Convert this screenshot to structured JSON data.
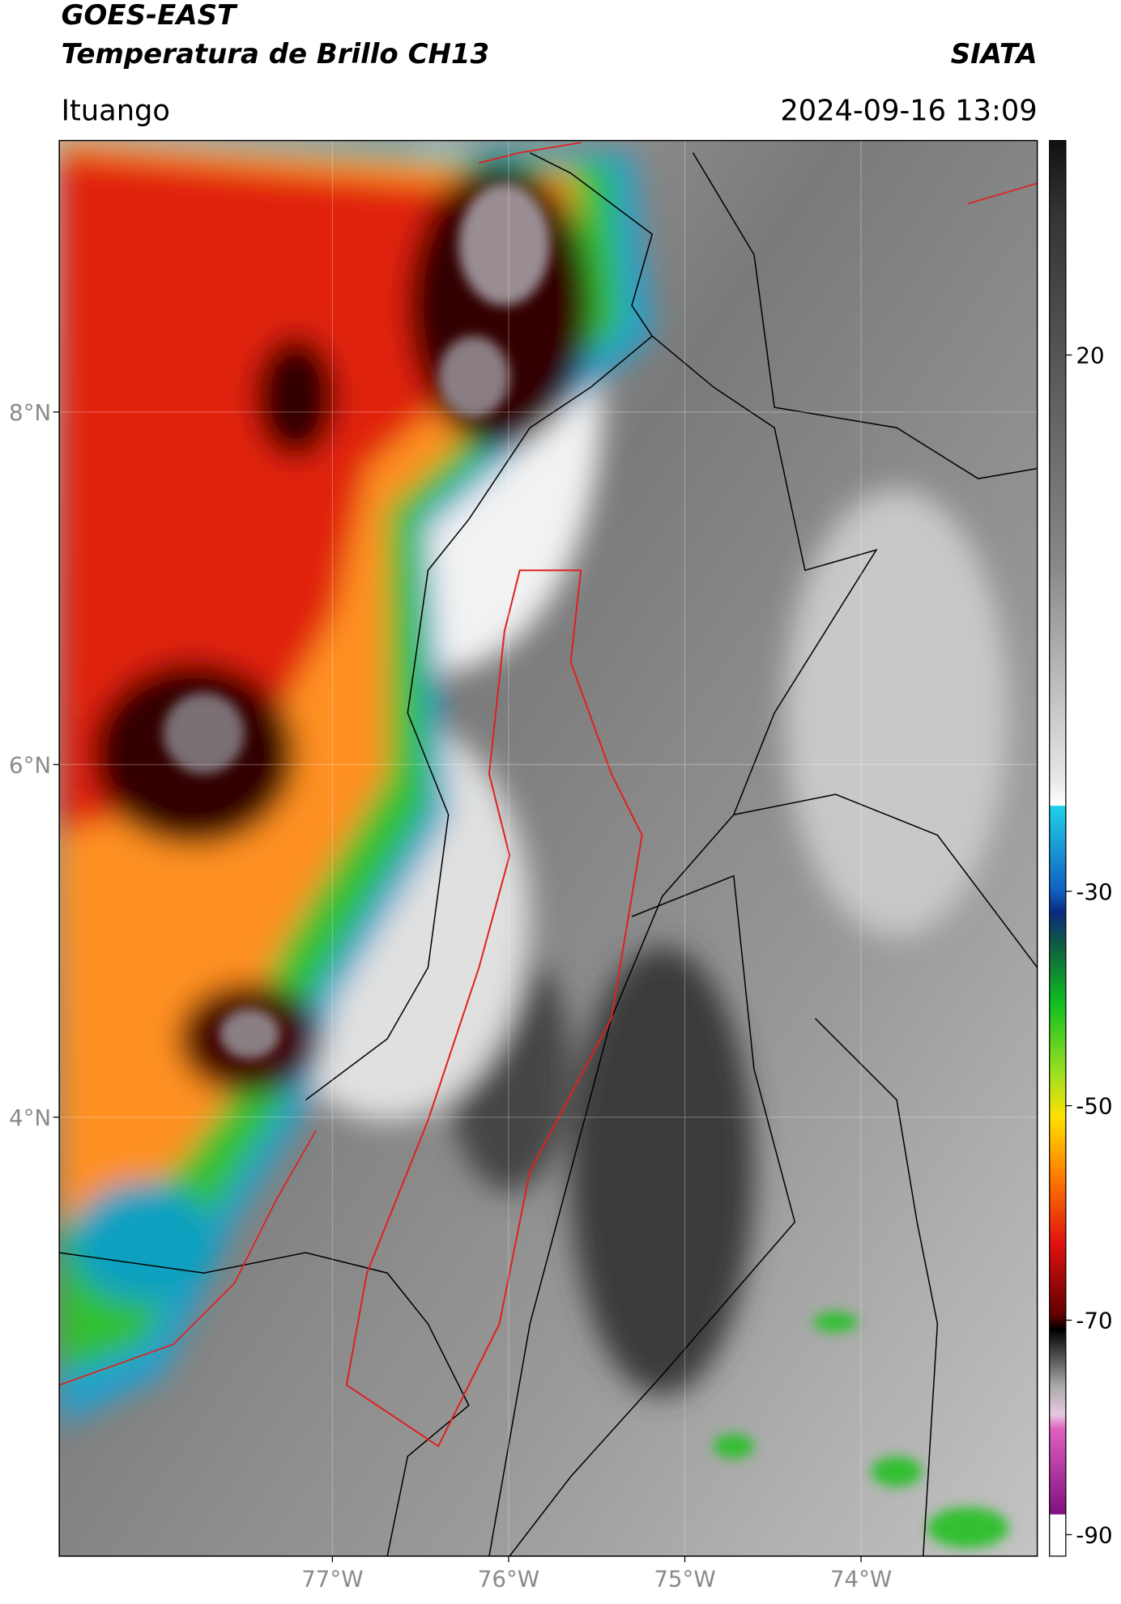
{
  "header": {
    "title_line1": "GOES-EAST",
    "title_line2": "Temperatura de Brillo CH13",
    "agency": "SIATA",
    "location": "Ituango",
    "datetime": "2024-09-16 13:09"
  },
  "map": {
    "xlim": [
      -78.55,
      -73.0
    ],
    "ylim": [
      1.51,
      9.54
    ],
    "xticks": [
      {
        "value": -77,
        "label": "77°W"
      },
      {
        "value": -76,
        "label": "76°W"
      },
      {
        "value": -75,
        "label": "75°W"
      },
      {
        "value": -74,
        "label": "74°W"
      }
    ],
    "yticks": [
      {
        "value": 8,
        "label": "8°N"
      },
      {
        "value": 6,
        "label": "6°N"
      },
      {
        "value": 4,
        "label": "4°N"
      }
    ],
    "grid": true
  },
  "colorbar": {
    "lim": [
      -92,
      40
    ],
    "ticks": [
      20,
      -30,
      -50,
      -70,
      -90
    ]
  }
}
